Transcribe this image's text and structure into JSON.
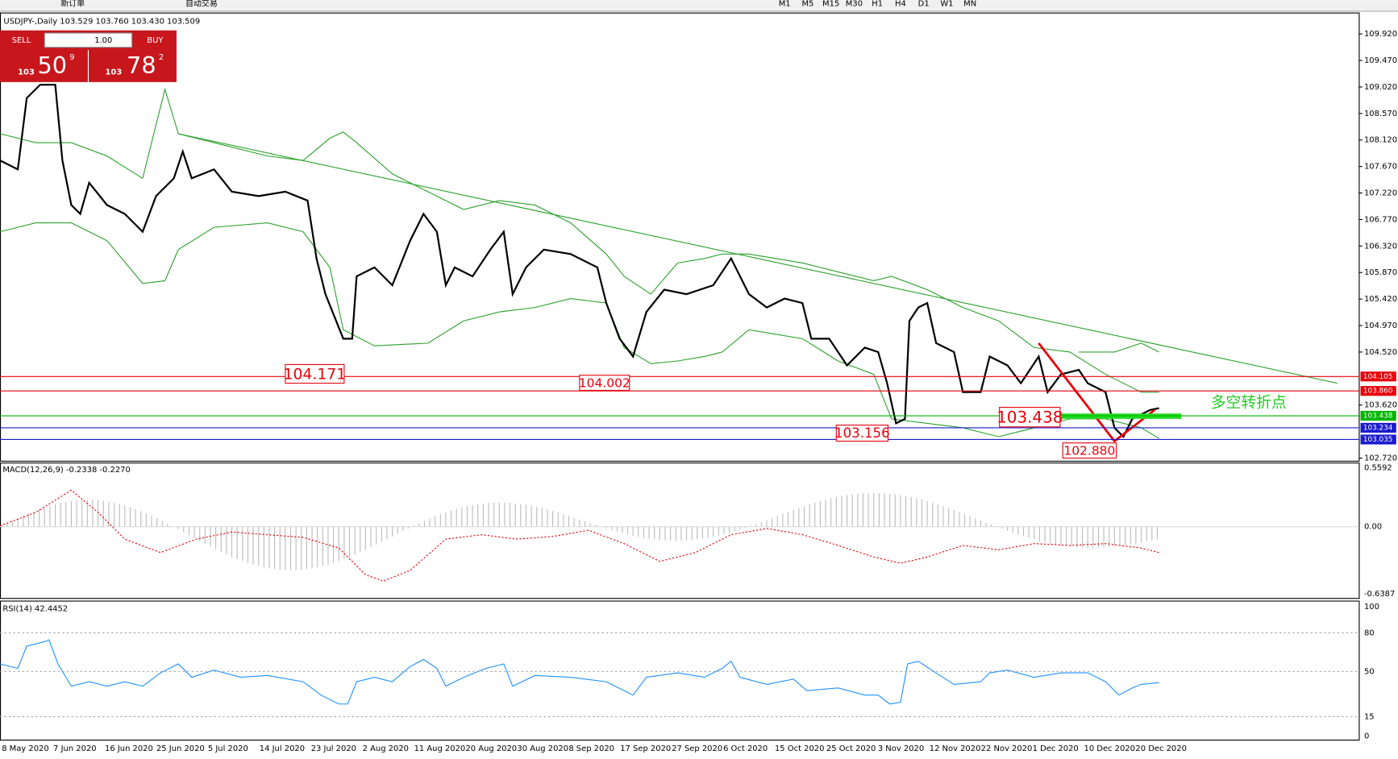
{
  "toolbar": {
    "new_order": "新订单",
    "auto_trading": "自动交易",
    "timeframes": [
      "M1",
      "M5",
      "M15",
      "M30",
      "H1",
      "H4",
      "D1",
      "W1",
      "MN"
    ]
  },
  "chart_header": "USDJPY-,Daily  103.529 103.760 103.430 103.509",
  "trade_panel": {
    "sell": "SELL",
    "buy": "BUY",
    "lot": "1.00",
    "sell_small": "103",
    "sell_big": "50",
    "sell_sup": "9",
    "buy_small": "103",
    "buy_big": "78",
    "buy_sup": "2"
  },
  "price_axis": {
    "ticks": [
      "109.920",
      "109.470",
      "109.020",
      "108.570",
      "108.120",
      "107.670",
      "107.220",
      "106.770",
      "106.320",
      "105.870",
      "105.420",
      "104.970",
      "104.520",
      "103.620",
      "102.720"
    ]
  },
  "levels": [
    {
      "label": "104.105",
      "color": "#e8000b"
    },
    {
      "label": "103.860",
      "color": "#e8000b"
    },
    {
      "label": "103.438",
      "color": "#00b400"
    },
    {
      "label": "103.234",
      "color": "#1a1ad0"
    },
    {
      "label": "103.035",
      "color": "#1a1ad0"
    }
  ],
  "annotations": [
    "104.171",
    "104.002",
    "103.156",
    "103.438",
    "102.880",
    "多空转折点"
  ],
  "macd": {
    "title": "MACD(12,26,9) -0.2338 -0.2270",
    "ticks": [
      "0.5592",
      "0.00",
      "-0.6387"
    ]
  },
  "rsi": {
    "title": "RSI(14) 42.4452",
    "ticks": [
      "100",
      "80",
      "50",
      "15",
      "0"
    ]
  },
  "dates": [
    "8 May 2020",
    "7 Jun 2020",
    "16 Jun 2020",
    "25 Jun 2020",
    "5 Jul 2020",
    "14 Jul 2020",
    "23 Jul 2020",
    "2 Aug 2020",
    "11 Aug 2020",
    "20 Aug 2020",
    "30 Aug 2020",
    "8 Sep 2020",
    "17 Sep 2020",
    "27 Sep 2020",
    "6 Oct 2020",
    "15 Oct 2020",
    "25 Oct 2020",
    "3 Nov 2020",
    "12 Nov 2020",
    "22 Nov 2020",
    "1 Dec 2020",
    "10 Dec 2020",
    "20 Dec 2020"
  ]
}
